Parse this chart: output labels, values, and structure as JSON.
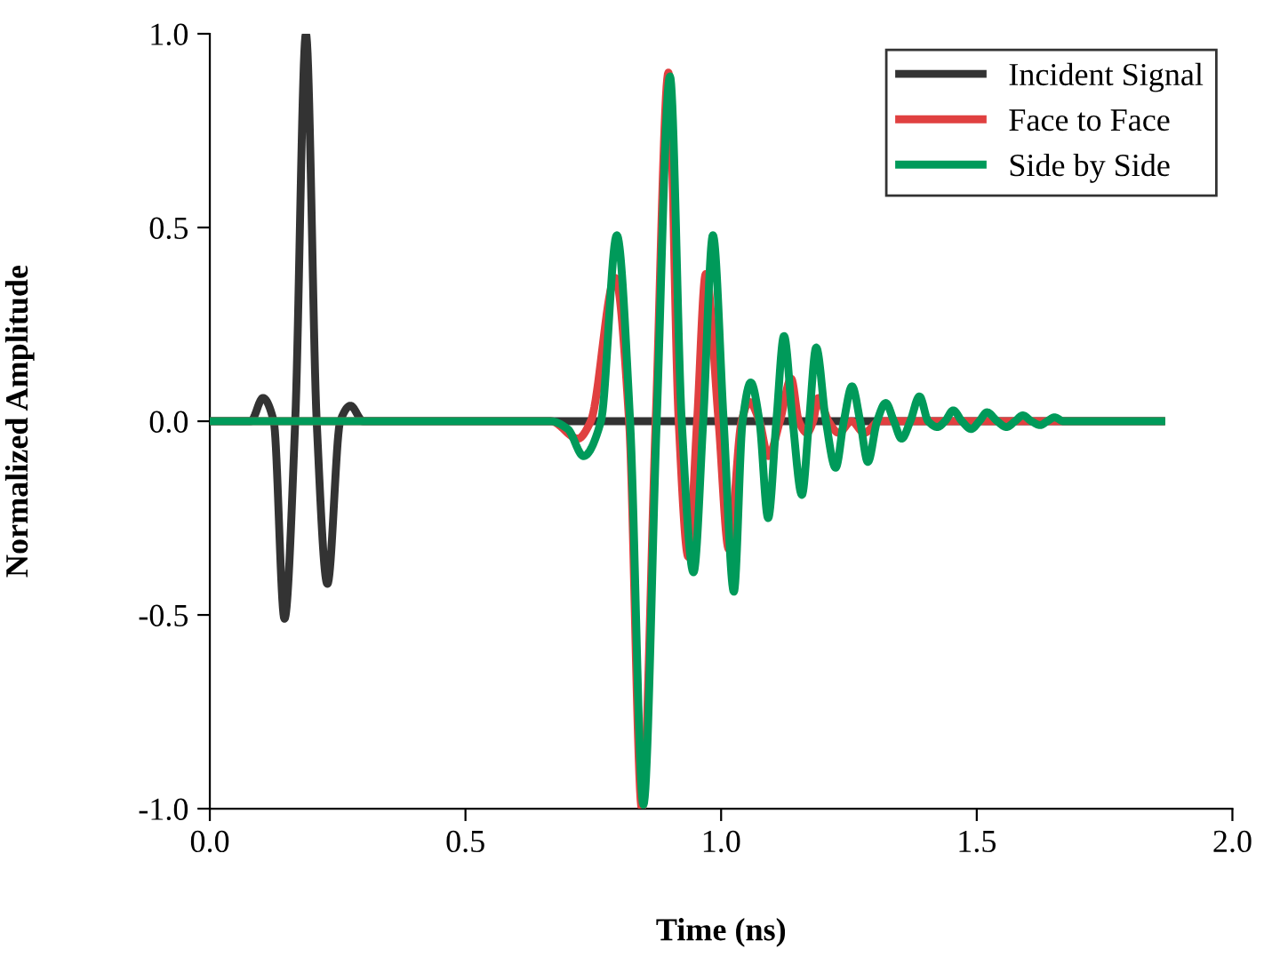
{
  "chart_data": {
    "type": "line",
    "xlabel": "Time (ns)",
    "ylabel": "Normalized Amplitude",
    "xlim": [
      0,
      2.0
    ],
    "xticks": [
      {
        "value": 0,
        "label": "0.0"
      },
      0.5,
      {
        "value": 1,
        "label": "1.0"
      },
      1.5,
      {
        "value": 2,
        "label": "2.0"
      }
    ],
    "ylim": [
      -1.0,
      1.0
    ],
    "yticks": [
      {
        "value": -1,
        "label": "-1.0"
      },
      -0.5,
      {
        "value": 0,
        "label": "0.0"
      },
      0.5,
      {
        "value": 1,
        "label": "1.0"
      }
    ],
    "grid": false,
    "legend": "top right",
    "line_style": "solid",
    "marker": "none",
    "series": [
      {
        "name": "Incident Signal",
        "color": "#333333",
        "x": [
          0,
          0.08,
          0.104,
          0.125,
          0.146,
          0.167,
          0.188,
          0.209,
          0.23,
          0.255,
          0.275,
          0.3,
          1.86
        ],
        "values": [
          0,
          0,
          0.06,
          0,
          -0.51,
          0,
          1.0,
          0,
          -0.42,
          0,
          0.04,
          0,
          0
        ]
      },
      {
        "name": "Face to Face",
        "color": "#e04040",
        "x": [
          0,
          0.667,
          0.72,
          0.745,
          0.793,
          0.82,
          0.845,
          0.872,
          0.897,
          0.917,
          0.936,
          0.953,
          0.97,
          0.995,
          1.015,
          1.04,
          1.055,
          1.075,
          1.092,
          1.115,
          1.137,
          1.152,
          1.168,
          1.18,
          1.19,
          1.21,
          1.23,
          1.255,
          1.28,
          1.31,
          1.861
        ],
        "values": [
          0,
          0,
          -0.045,
          0,
          0.37,
          0,
          -1.0,
          0,
          0.9,
          0,
          -0.35,
          0,
          0.38,
          0,
          -0.33,
          0,
          0.05,
          0,
          -0.09,
          0,
          0.11,
          0,
          -0.03,
          0,
          0.06,
          0,
          -0.03,
          0,
          -0.03,
          0,
          0
        ]
      },
      {
        "name": "Side by Side",
        "color": "#009a5a",
        "x": [
          0,
          0.667,
          0.7,
          0.731,
          0.765,
          0.796,
          0.822,
          0.848,
          0.874,
          0.9,
          0.923,
          0.946,
          0.965,
          0.984,
          1.005,
          1.025,
          1.042,
          1.058,
          1.075,
          1.092,
          1.108,
          1.123,
          1.14,
          1.158,
          1.172,
          1.186,
          1.205,
          1.224,
          1.24,
          1.256,
          1.272,
          1.287,
          1.305,
          1.322,
          1.338,
          1.353,
          1.37,
          1.388,
          1.405,
          1.423,
          1.438,
          1.454,
          1.471,
          1.489,
          1.505,
          1.52,
          1.54,
          1.558,
          1.575,
          1.59,
          1.607,
          1.624,
          1.638,
          1.652,
          1.67,
          1.861
        ],
        "values": [
          0,
          0,
          -0.02,
          -0.09,
          0,
          0.48,
          0,
          -0.99,
          0,
          0.89,
          0,
          -0.39,
          0,
          0.48,
          0,
          -0.44,
          0,
          0.1,
          0,
          -0.25,
          0,
          0.22,
          0,
          -0.19,
          0,
          0.19,
          0,
          -0.12,
          0,
          0.09,
          0,
          -0.105,
          0,
          0.047,
          0,
          -0.045,
          0,
          0.064,
          0,
          -0.015,
          0,
          0.028,
          0,
          -0.02,
          0,
          0.023,
          0,
          -0.015,
          0,
          0.015,
          0,
          -0.01,
          0,
          0.01,
          0,
          0
        ]
      }
    ]
  }
}
